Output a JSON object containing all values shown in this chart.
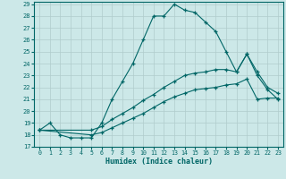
{
  "xlabel": "Humidex (Indice chaleur)",
  "bg_color": "#cce8e8",
  "line_color": "#006666",
  "grid_color": "#b0cccc",
  "xlim": [
    -0.5,
    23.5
  ],
  "ylim": [
    17,
    29.2
  ],
  "xticks": [
    0,
    1,
    2,
    3,
    4,
    5,
    6,
    7,
    8,
    9,
    10,
    11,
    12,
    13,
    14,
    15,
    16,
    17,
    18,
    19,
    20,
    21,
    22,
    23
  ],
  "yticks": [
    17,
    18,
    19,
    20,
    21,
    22,
    23,
    24,
    25,
    26,
    27,
    28,
    29
  ],
  "line1_x": [
    0,
    1,
    2,
    3,
    4,
    5,
    6,
    7,
    8,
    9,
    10,
    11,
    12,
    13,
    14,
    15,
    16,
    17,
    18,
    19,
    20,
    21,
    22,
    23
  ],
  "line1_y": [
    18.4,
    19.0,
    18.0,
    17.75,
    17.75,
    17.75,
    19.0,
    21.0,
    22.5,
    24.0,
    26.0,
    28.0,
    28.0,
    29.0,
    28.5,
    28.3,
    27.5,
    26.7,
    25.0,
    23.3,
    24.8,
    23.0,
    21.8,
    21.0
  ],
  "line2_x": [
    0,
    5,
    6,
    7,
    8,
    9,
    10,
    11,
    12,
    13,
    14,
    15,
    16,
    17,
    18,
    19,
    20,
    21,
    22,
    23
  ],
  "line2_y": [
    18.4,
    18.4,
    18.7,
    19.3,
    19.8,
    20.3,
    20.9,
    21.4,
    22.0,
    22.5,
    23.0,
    23.2,
    23.3,
    23.5,
    23.5,
    23.3,
    24.8,
    23.3,
    22.0,
    21.5
  ],
  "line3_x": [
    0,
    5,
    6,
    7,
    8,
    9,
    10,
    11,
    12,
    13,
    14,
    15,
    16,
    17,
    18,
    19,
    20,
    21,
    22,
    23
  ],
  "line3_y": [
    18.4,
    18.0,
    18.2,
    18.6,
    19.0,
    19.4,
    19.8,
    20.3,
    20.8,
    21.2,
    21.5,
    21.8,
    21.9,
    22.0,
    22.2,
    22.3,
    22.7,
    21.0,
    21.1,
    21.1
  ]
}
